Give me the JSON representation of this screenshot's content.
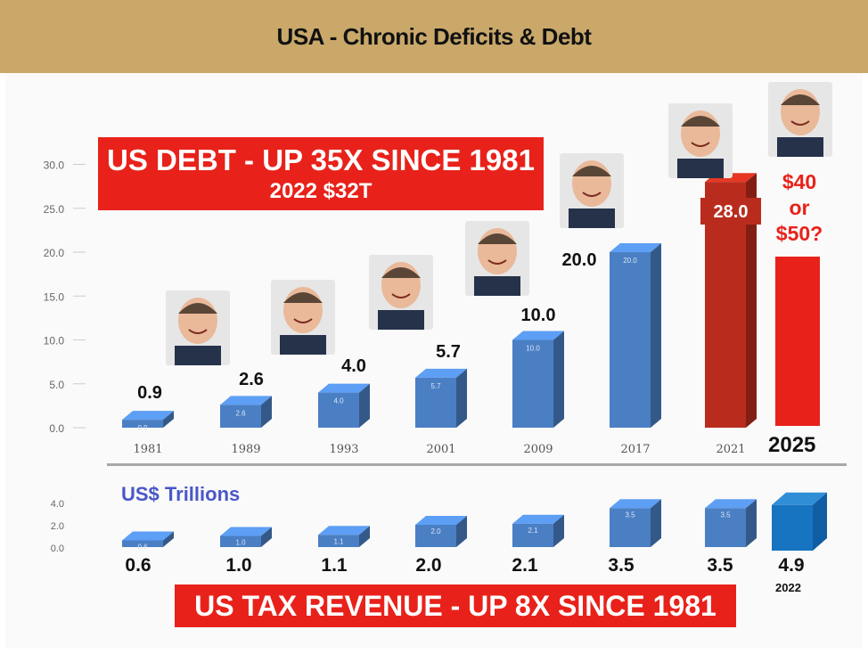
{
  "header": {
    "title": "USA - Chronic Deficits & Debt"
  },
  "annotations": {
    "debt_title": "US DEBT - UP 35X SINCE 1981",
    "debt_subtitle": "2022 $32T",
    "tax_title": "US TAX REVENUE - UP 8X SINCE 1981",
    "unit_label": "US$ Trillions",
    "projection_label": [
      "$40",
      "or",
      "$50?"
    ],
    "projection_year": "2025",
    "tax_2022_year": "2022"
  },
  "portraits": [
    "caricature-icon",
    "portrait-icon",
    "portrait-icon",
    "portrait-icon",
    "caricature-icon",
    "caricature-icon",
    "caricature-icon",
    "caricature-icon"
  ],
  "colors": {
    "header_bg": "#c9a86a",
    "bar_blue": "#4a7fc4",
    "bar_red": "#e8221a",
    "bar_dark_red": "#b92c1d",
    "label_blue": "#4a57c8"
  },
  "chart_data": [
    {
      "type": "bar",
      "title": "US DEBT - UP 35X SINCE 1981",
      "subtitle": "2022 $32T",
      "categories": [
        "1981",
        "1989",
        "1993",
        "2001",
        "2009",
        "2017",
        "2021"
      ],
      "values": [
        0.9,
        2.6,
        4.0,
        5.7,
        10.0,
        20.0,
        28.0
      ],
      "value_labels": [
        "0.9",
        "2.6",
        "4.0",
        "5.7",
        "10.0",
        "20.0",
        "28.0"
      ],
      "bar_labels": [
        "0.9",
        "2.6",
        "4.0",
        "5.7",
        "10.0",
        "20.0",
        ""
      ],
      "y_ticks": [
        "0.0",
        "5.0",
        "10.0",
        "15.0",
        "20.0",
        "25.0",
        "30.0"
      ],
      "ylim": [
        0,
        30
      ],
      "projection": {
        "category": "2025",
        "label": "$40 or $50?"
      },
      "grid": false
    },
    {
      "type": "bar",
      "title": "US TAX REVENUE - UP 8X SINCE 1981",
      "ylabel": "US$ Trillions",
      "categories": [
        "1981",
        "1989",
        "1993",
        "2001",
        "2009",
        "2017",
        "2021",
        "2022"
      ],
      "values": [
        0.6,
        1.0,
        1.1,
        2.0,
        2.1,
        3.5,
        3.5,
        4.9
      ],
      "value_labels": [
        "0.6",
        "1.0",
        "1.1",
        "2.0",
        "2.1",
        "3.5",
        "3.5",
        "4.9"
      ],
      "bar_labels": [
        "0.6",
        "1.0",
        "1.1",
        "2.0",
        "2.1",
        "3.5",
        "3.5",
        ""
      ],
      "y_ticks": [
        "0.0",
        "2.0",
        "4.0"
      ],
      "ylim": [
        0,
        4
      ],
      "grid": false
    }
  ]
}
